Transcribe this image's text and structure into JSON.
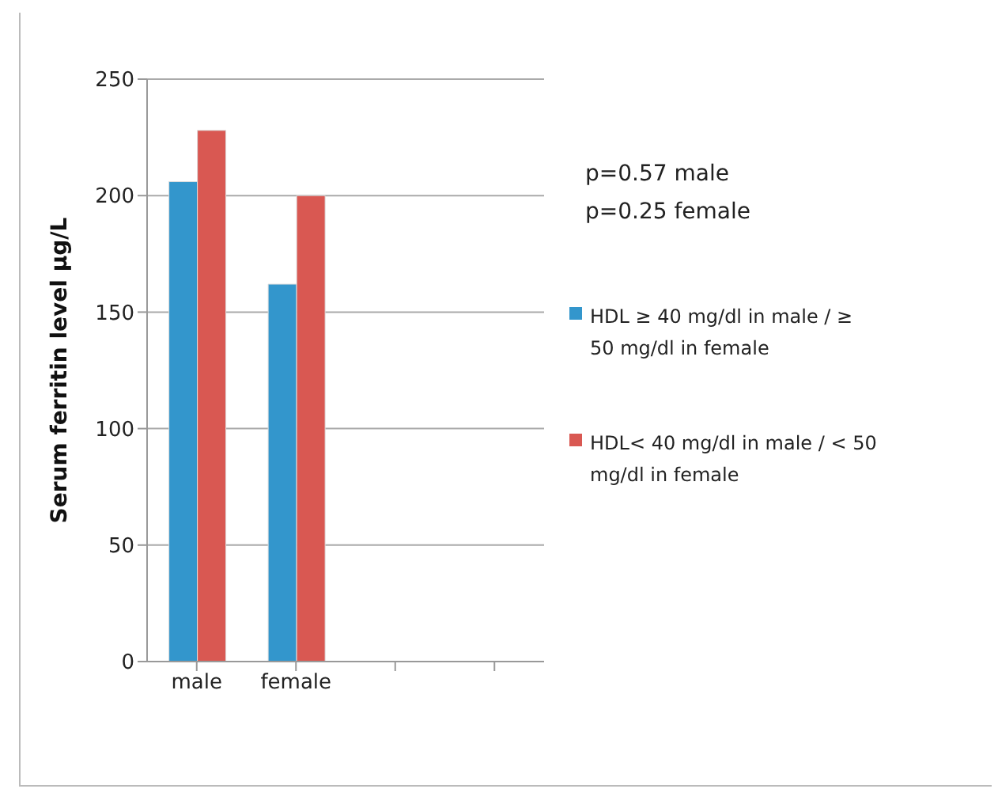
{
  "chart_data": {
    "type": "bar",
    "ylabel": "Serum ferritin level µg/L",
    "categories": [
      "male",
      "female",
      null,
      null
    ],
    "series": [
      {
        "name": "HDL ≥ 40 mg/dl in male / ≥ 50 mg/dl in female",
        "color": "#3396cc",
        "values": [
          206,
          162,
          null,
          null
        ]
      },
      {
        "name": "HDL< 40 mg/dl in male / < 50 mg/dl in female",
        "color": "#d95852",
        "values": [
          228,
          200,
          null,
          null
        ]
      }
    ],
    "ylim": [
      0,
      250
    ],
    "yticks": [
      0,
      50,
      100,
      150,
      200,
      250
    ],
    "grid": "y",
    "legend": "right",
    "annotations": [
      "p=0.57 male\np=0.25 female"
    ]
  }
}
